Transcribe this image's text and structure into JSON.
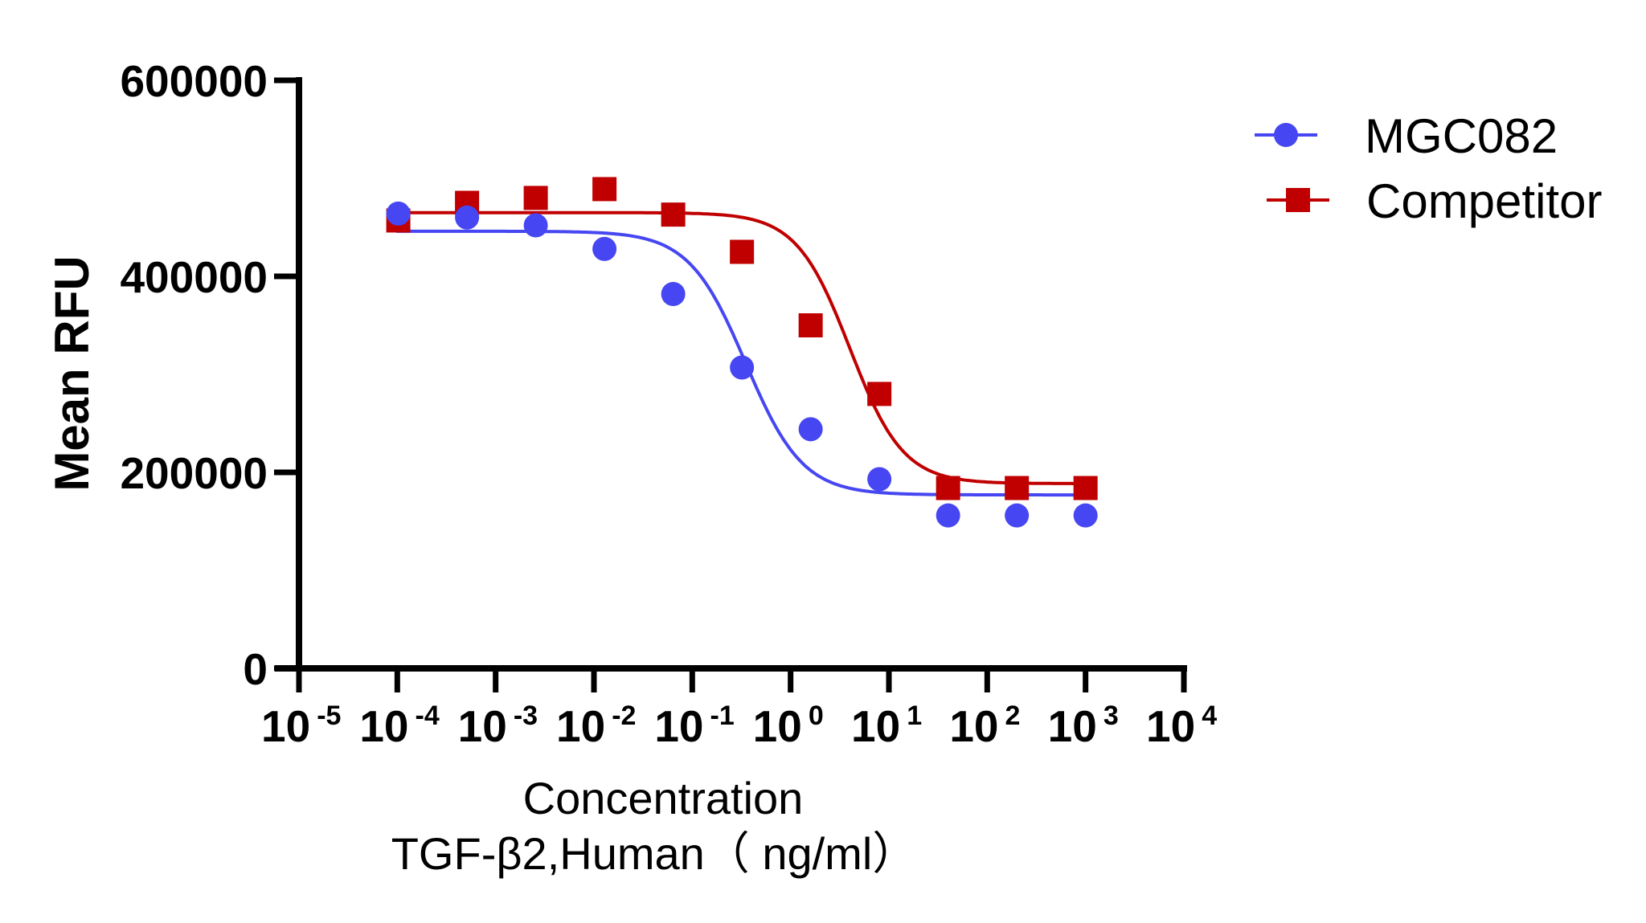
{
  "chart_data": {
    "type": "scatter",
    "title": "",
    "xlabel": "Concentration",
    "xlabel_line2": "TGF-β2,Human（ ng/ml）",
    "ylabel": "Mean RFU",
    "xscale": "log10",
    "xlim": [
      1e-05,
      10000
    ],
    "ylim": [
      0,
      600000
    ],
    "grid": false,
    "legend_position": "top-right",
    "y_ticks": [
      {
        "value": 0,
        "label": "0"
      },
      {
        "value": 200000,
        "label": "200000"
      },
      {
        "value": 400000,
        "label": "400000"
      },
      {
        "value": 600000,
        "label": "600000"
      }
    ],
    "x_ticks": [
      {
        "exp": -5,
        "base": "10",
        "sup": "-5"
      },
      {
        "exp": -4,
        "base": "10",
        "sup": "-4"
      },
      {
        "exp": -3,
        "base": "10",
        "sup": "-3"
      },
      {
        "exp": -2,
        "base": "10",
        "sup": "-2"
      },
      {
        "exp": -1,
        "base": "10",
        "sup": "-1"
      },
      {
        "exp": 0,
        "base": "10",
        "sup": "0"
      },
      {
        "exp": 1,
        "base": "10",
        "sup": "1"
      },
      {
        "exp": 2,
        "base": "10",
        "sup": "2"
      },
      {
        "exp": 3,
        "base": "10",
        "sup": "3"
      },
      {
        "exp": 4,
        "base": "10",
        "sup": "4"
      }
    ],
    "x": [
      0.0001024,
      0.000512,
      0.00256,
      0.0128,
      0.064,
      0.32,
      1.6,
      8,
      40,
      200,
      1000
    ],
    "series": [
      {
        "name": "MGC082",
        "color": "#4646F2",
        "marker": "circle",
        "values": [
          464000,
          460000,
          452000,
          428000,
          382000,
          307000,
          244000,
          193000,
          156000,
          156000,
          156000
        ],
        "fit": {
          "model": "4PL",
          "top": 446000,
          "bottom": 177000,
          "ic50": 0.35,
          "hill": 1.5
        }
      },
      {
        "name": "Competitor",
        "color": "#C00000",
        "marker": "square",
        "values": [
          457000,
          475000,
          480000,
          489000,
          463000,
          425000,
          350000,
          280000,
          184000,
          184000,
          184000
        ],
        "fit": {
          "model": "4PL",
          "top": 465000,
          "bottom": 188500,
          "ic50": 4.0,
          "hill": 1.6
        }
      }
    ]
  }
}
